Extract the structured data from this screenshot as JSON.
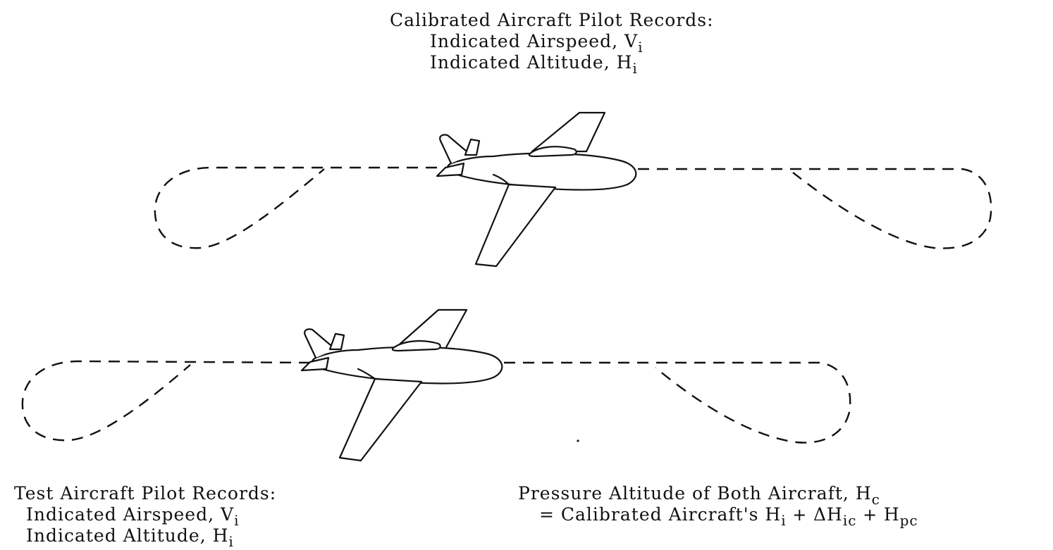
{
  "top_label": {
    "title": "Calibrated Aircraft Pilot Records:",
    "line1": "Indicated Airspeed, V",
    "line1_sub": "i",
    "line2": "Indicated Altitude, H",
    "line2_sub": "i"
  },
  "bottom_left_label": {
    "title": "Test Aircraft Pilot Records:",
    "line1": "Indicated Airspeed, V",
    "line1_sub": "i",
    "line2": "Indicated Altitude, H",
    "line2_sub": "i"
  },
  "bottom_right_label": {
    "line1": "Pressure Altitude of Both Aircraft, H",
    "line1_sub": "c",
    "eq_prefix": "= Calibrated Aircraft's ",
    "h": "H",
    "h_sub": "i",
    "plus1": " + ",
    "delta": "ΔH",
    "delta_sub": "ic",
    "plus2": " + ",
    "hpc": "H",
    "hpc_sub": "pc"
  },
  "colors": {
    "ink": "#111111",
    "background": "#ffffff"
  },
  "icons": [
    "airplane-icon",
    "flight-path"
  ]
}
